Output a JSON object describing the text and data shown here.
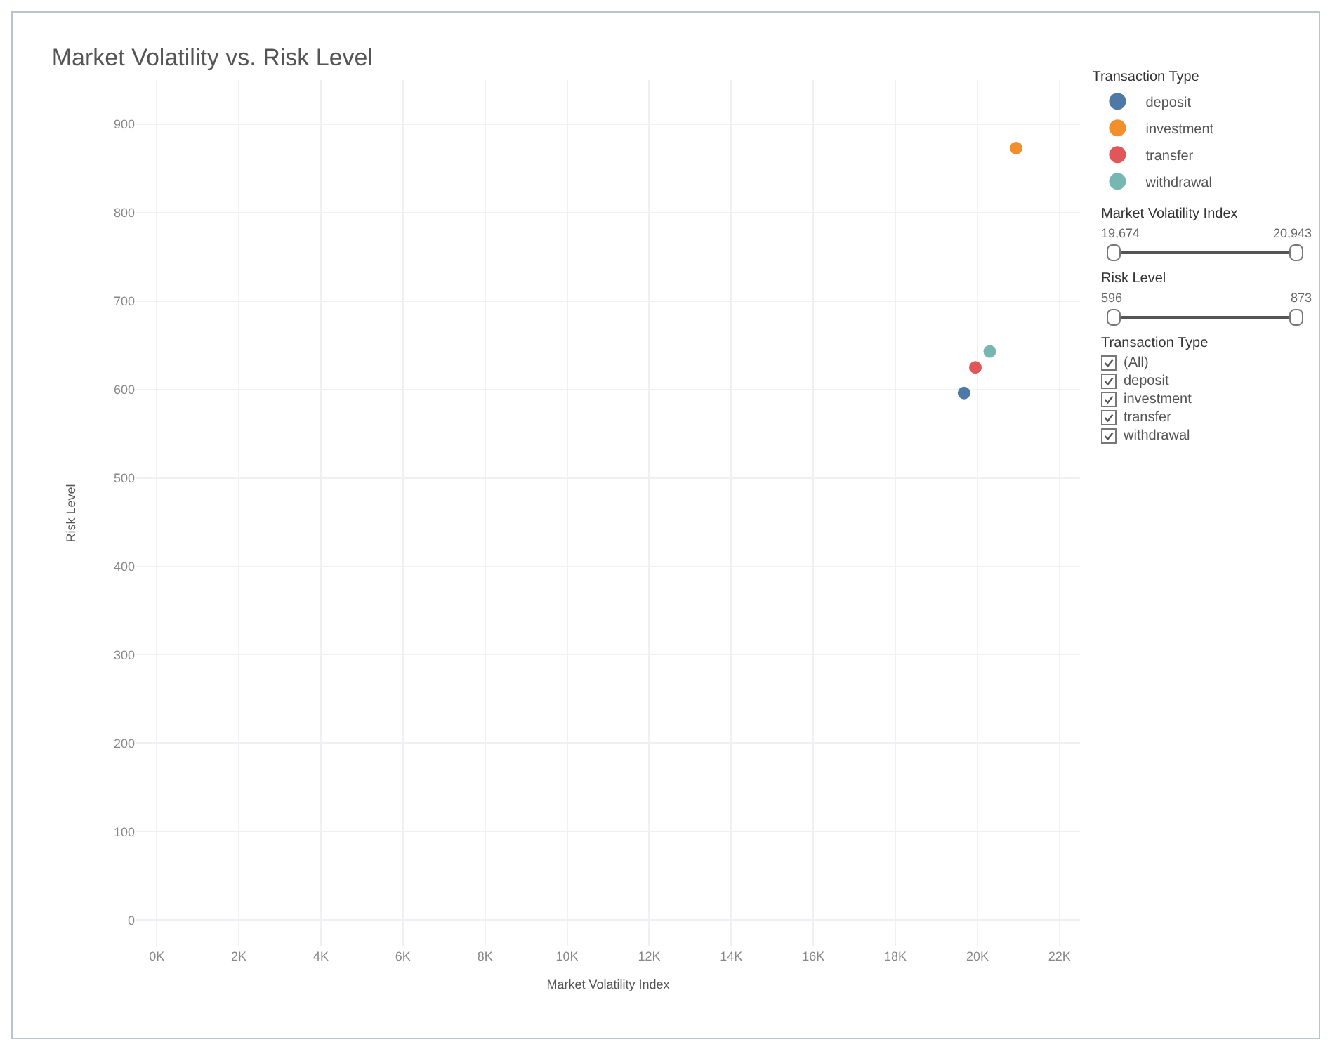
{
  "chart_data": {
    "type": "scatter",
    "title": "Market Volatility vs. Risk Level",
    "xlabel": "Market Volatility Index",
    "ylabel": "Risk Level",
    "legend_title": "Transaction Type",
    "legend": "top right",
    "grid": true,
    "marker": "circle",
    "xlim": [
      -500,
      22500
    ],
    "xticks": [
      {
        "value": 0,
        "label": "0K"
      },
      {
        "value": 2000,
        "label": "2K"
      },
      {
        "value": 4000,
        "label": "4K"
      },
      {
        "value": 6000,
        "label": "6K"
      },
      {
        "value": 8000,
        "label": "8K"
      },
      {
        "value": 10000,
        "label": "10K"
      },
      {
        "value": 12000,
        "label": "12K"
      },
      {
        "value": 14000,
        "label": "14K"
      },
      {
        "value": 16000,
        "label": "16K"
      },
      {
        "value": 18000,
        "label": "18K"
      },
      {
        "value": 20000,
        "label": "20K"
      },
      {
        "value": 22000,
        "label": "22K"
      }
    ],
    "ylim": [
      -30,
      950
    ],
    "yticks": [
      0,
      100,
      200,
      300,
      400,
      500,
      600,
      700,
      800,
      900
    ],
    "series": [
      {
        "name": "deposit",
        "color": "#4e79a7",
        "x": [
          19674
        ],
        "values": [
          596
        ]
      },
      {
        "name": "investment",
        "color": "#f28e2b",
        "x": [
          20943
        ],
        "values": [
          873
        ]
      },
      {
        "name": "transfer",
        "color": "#e15759",
        "x": [
          19950
        ],
        "values": [
          625
        ]
      },
      {
        "name": "withdrawal",
        "color": "#76b7b2",
        "x": [
          20300
        ],
        "values": [
          643
        ]
      }
    ],
    "annotations": [
      "Market Volatility Index",
      "19,674",
      "20,943",
      "Risk Level",
      "596",
      "873",
      "Transaction Type",
      "(All)",
      "deposit",
      "investment",
      "transfer",
      "withdrawal"
    ]
  }
}
